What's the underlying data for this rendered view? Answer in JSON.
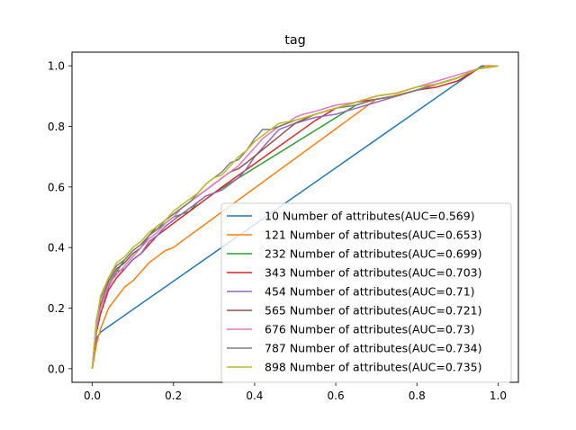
{
  "chart_data": {
    "type": "line",
    "title": "tag",
    "xlabel": "",
    "ylabel": "",
    "xlim": [
      -0.05,
      1.05
    ],
    "ylim": [
      -0.045,
      1.045
    ],
    "xticks": [
      "0.0",
      "0.2",
      "0.4",
      "0.6",
      "0.8",
      "1.0"
    ],
    "yticks": [
      "0.0",
      "0.2",
      "0.4",
      "0.6",
      "0.8",
      "1.0"
    ],
    "grid": false,
    "legend_position": "lower-right",
    "series": [
      {
        "name": "10 Number of attributes(AUC=0.569)",
        "color": "#1f77b4",
        "x": [
          0,
          0.01,
          0.02,
          0.03,
          0.96,
          1.0
        ],
        "y": [
          0,
          0.1,
          0.12,
          0.13,
          1.0,
          1.0
        ]
      },
      {
        "name": "121 Number of attributes(AUC=0.653)",
        "color": "#ff7f0e",
        "x": [
          0,
          0.01,
          0.02,
          0.04,
          0.08,
          0.1,
          0.12,
          0.14,
          0.16,
          0.18,
          0.2,
          0.22,
          0.7,
          0.74,
          0.8,
          0.9,
          0.97,
          1.0
        ],
        "y": [
          0,
          0.08,
          0.13,
          0.2,
          0.27,
          0.29,
          0.32,
          0.35,
          0.37,
          0.39,
          0.4,
          0.42,
          0.89,
          0.9,
          0.92,
          0.96,
          1.0,
          1.0
        ]
      },
      {
        "name": "232 Number of attributes(AUC=0.699)",
        "color": "#2ca02c",
        "x": [
          0,
          0.01,
          0.02,
          0.04,
          0.06,
          0.08,
          0.1,
          0.12,
          0.14,
          0.16,
          0.18,
          0.2,
          0.22,
          0.24,
          0.26,
          0.28,
          0.3,
          0.65,
          0.7,
          0.75,
          0.8,
          0.85,
          0.9,
          0.95,
          1.0
        ],
        "y": [
          0,
          0.15,
          0.2,
          0.28,
          0.32,
          0.36,
          0.39,
          0.41,
          0.44,
          0.46,
          0.48,
          0.5,
          0.51,
          0.52,
          0.55,
          0.57,
          0.58,
          0.87,
          0.89,
          0.9,
          0.92,
          0.94,
          0.96,
          0.99,
          1.0
        ]
      },
      {
        "name": "343 Number of attributes(AUC=0.703)",
        "color": "#d62728",
        "x": [
          0,
          0.01,
          0.02,
          0.04,
          0.06,
          0.08,
          0.1,
          0.12,
          0.14,
          0.16,
          0.18,
          0.2,
          0.22,
          0.24,
          0.26,
          0.28,
          0.3,
          0.32,
          0.55,
          0.6,
          0.65,
          0.7,
          0.75,
          0.8,
          0.85,
          0.9,
          0.95,
          1.0
        ],
        "y": [
          0,
          0.12,
          0.18,
          0.26,
          0.3,
          0.33,
          0.36,
          0.38,
          0.41,
          0.44,
          0.46,
          0.48,
          0.5,
          0.52,
          0.54,
          0.56,
          0.58,
          0.6,
          0.82,
          0.86,
          0.88,
          0.89,
          0.9,
          0.92,
          0.93,
          0.95,
          0.99,
          1.0
        ]
      },
      {
        "name": "454 Number of attributes(AUC=0.71)",
        "color": "#9467bd",
        "x": [
          0,
          0.01,
          0.02,
          0.04,
          0.06,
          0.08,
          0.1,
          0.12,
          0.14,
          0.16,
          0.18,
          0.2,
          0.22,
          0.24,
          0.26,
          0.28,
          0.3,
          0.32,
          0.34,
          0.36,
          0.38,
          0.4,
          0.42,
          0.44,
          0.46,
          0.5,
          0.55,
          0.6,
          0.65,
          0.7,
          0.75,
          0.8,
          0.85,
          0.9,
          0.95,
          1.0
        ],
        "y": [
          0,
          0.13,
          0.2,
          0.27,
          0.32,
          0.33,
          0.36,
          0.38,
          0.42,
          0.44,
          0.47,
          0.49,
          0.51,
          0.53,
          0.55,
          0.57,
          0.58,
          0.59,
          0.61,
          0.63,
          0.66,
          0.7,
          0.73,
          0.76,
          0.79,
          0.81,
          0.83,
          0.84,
          0.86,
          0.88,
          0.9,
          0.92,
          0.94,
          0.96,
          0.99,
          1.0
        ]
      },
      {
        "name": "565 Number of attributes(AUC=0.721)",
        "color": "#8c564b",
        "x": [
          0,
          0.01,
          0.02,
          0.04,
          0.06,
          0.08,
          0.1,
          0.12,
          0.14,
          0.16,
          0.18,
          0.2,
          0.22,
          0.24,
          0.26,
          0.28,
          0.3,
          0.32,
          0.34,
          0.36,
          0.38,
          0.5,
          0.55,
          0.6,
          0.65,
          0.7,
          0.75,
          0.8,
          0.85,
          0.9,
          0.95,
          1.0
        ],
        "y": [
          0,
          0.15,
          0.21,
          0.29,
          0.33,
          0.35,
          0.38,
          0.4,
          0.44,
          0.47,
          0.49,
          0.51,
          0.53,
          0.55,
          0.57,
          0.59,
          0.61,
          0.63,
          0.65,
          0.66,
          0.68,
          0.81,
          0.84,
          0.86,
          0.88,
          0.9,
          0.91,
          0.93,
          0.94,
          0.96,
          0.99,
          1.0
        ]
      },
      {
        "name": "676 Number of attributes(AUC=0.73)",
        "color": "#e377c2",
        "x": [
          0,
          0.01,
          0.02,
          0.04,
          0.06,
          0.08,
          0.1,
          0.12,
          0.14,
          0.16,
          0.18,
          0.2,
          0.22,
          0.24,
          0.26,
          0.28,
          0.3,
          0.32,
          0.34,
          0.36,
          0.38,
          0.4,
          0.42,
          0.44,
          0.46,
          0.48,
          0.5,
          0.52,
          0.55,
          0.6,
          0.65,
          0.7,
          0.75,
          0.8,
          0.85,
          0.9,
          0.95,
          1.0
        ],
        "y": [
          0,
          0.14,
          0.2,
          0.28,
          0.31,
          0.34,
          0.37,
          0.4,
          0.43,
          0.45,
          0.48,
          0.5,
          0.53,
          0.55,
          0.57,
          0.59,
          0.61,
          0.63,
          0.65,
          0.67,
          0.7,
          0.73,
          0.76,
          0.78,
          0.8,
          0.81,
          0.83,
          0.84,
          0.85,
          0.87,
          0.88,
          0.9,
          0.91,
          0.93,
          0.95,
          0.97,
          0.99,
          1.0
        ]
      },
      {
        "name": "787 Number of attributes(AUC=0.734)",
        "color": "#7f7f7f",
        "x": [
          0,
          0.01,
          0.02,
          0.04,
          0.06,
          0.08,
          0.1,
          0.12,
          0.14,
          0.16,
          0.18,
          0.2,
          0.22,
          0.24,
          0.26,
          0.28,
          0.3,
          0.32,
          0.34,
          0.36,
          0.38,
          0.4,
          0.42,
          0.44,
          0.46,
          0.5,
          0.55,
          0.6,
          0.65,
          0.7,
          0.75,
          0.8,
          0.85,
          0.9,
          0.95,
          1.0
        ],
        "y": [
          0,
          0.16,
          0.23,
          0.3,
          0.34,
          0.36,
          0.39,
          0.41,
          0.44,
          0.46,
          0.49,
          0.51,
          0.53,
          0.55,
          0.58,
          0.61,
          0.63,
          0.65,
          0.68,
          0.69,
          0.72,
          0.76,
          0.79,
          0.79,
          0.8,
          0.82,
          0.84,
          0.86,
          0.87,
          0.89,
          0.9,
          0.92,
          0.94,
          0.96,
          0.99,
          1.0
        ]
      },
      {
        "name": "898 Number of attributes(AUC=0.735)",
        "color": "#bcbd22",
        "x": [
          0,
          0.01,
          0.02,
          0.04,
          0.06,
          0.08,
          0.1,
          0.12,
          0.14,
          0.16,
          0.18,
          0.2,
          0.22,
          0.24,
          0.26,
          0.28,
          0.3,
          0.32,
          0.34,
          0.36,
          0.38,
          0.4,
          0.42,
          0.44,
          0.46,
          0.5,
          0.55,
          0.6,
          0.65,
          0.7,
          0.75,
          0.8,
          0.85,
          0.9,
          0.95,
          1.0
        ],
        "y": [
          0,
          0.15,
          0.24,
          0.3,
          0.35,
          0.37,
          0.4,
          0.42,
          0.45,
          0.47,
          0.49,
          0.52,
          0.54,
          0.56,
          0.58,
          0.61,
          0.63,
          0.64,
          0.67,
          0.7,
          0.72,
          0.75,
          0.77,
          0.79,
          0.81,
          0.82,
          0.84,
          0.86,
          0.88,
          0.9,
          0.91,
          0.93,
          0.94,
          0.96,
          0.99,
          1.0
        ]
      }
    ]
  }
}
